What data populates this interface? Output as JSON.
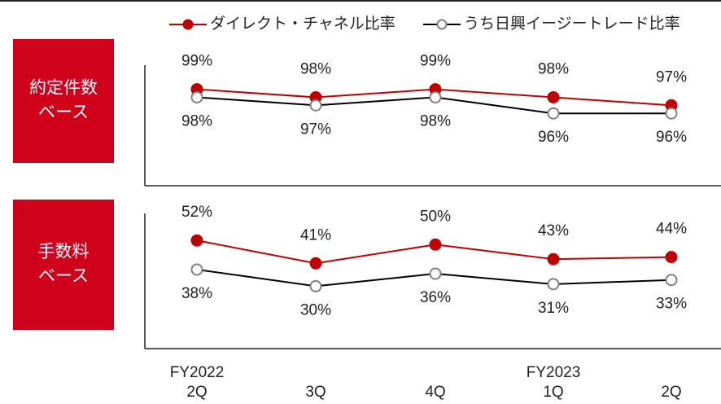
{
  "chart_data": [
    {
      "type": "line",
      "title": [
        "約定件数",
        "ベース"
      ],
      "ylim": [
        87,
        102
      ],
      "series": [
        {
          "name": "ダイレクト・チャネル比率",
          "color": "#c00000",
          "values": [
            99,
            98,
            99,
            98,
            97
          ],
          "value_labels": [
            "99%",
            "98%",
            "99%",
            "98%",
            "97%"
          ]
        },
        {
          "name": "うち日興イージートレード比率",
          "color": "#000000",
          "values": [
            98,
            97,
            98,
            96,
            96
          ],
          "value_labels": [
            "98%",
            "97%",
            "98%",
            "96%",
            "96%"
          ]
        }
      ]
    },
    {
      "type": "line",
      "title": [
        "手数料",
        "ベース"
      ],
      "ylim": [
        0,
        65
      ],
      "series": [
        {
          "name": "ダイレクト・チャネル比率",
          "color": "#c00000",
          "values": [
            52,
            41,
            50,
            43,
            44
          ],
          "value_labels": [
            "52%",
            "41%",
            "50%",
            "43%",
            "44%"
          ]
        },
        {
          "name": "うち日興イージートレード比率",
          "color": "#000000",
          "values": [
            38,
            30,
            36,
            31,
            33
          ],
          "value_labels": [
            "38%",
            "30%",
            "36%",
            "31%",
            "33%"
          ]
        }
      ]
    }
  ],
  "x_axis": {
    "fiscal_years": [
      "FY2022",
      null,
      null,
      "FY2023",
      null
    ],
    "categories": [
      "2Q",
      "3Q",
      "4Q",
      "1Q",
      "2Q"
    ]
  }
}
